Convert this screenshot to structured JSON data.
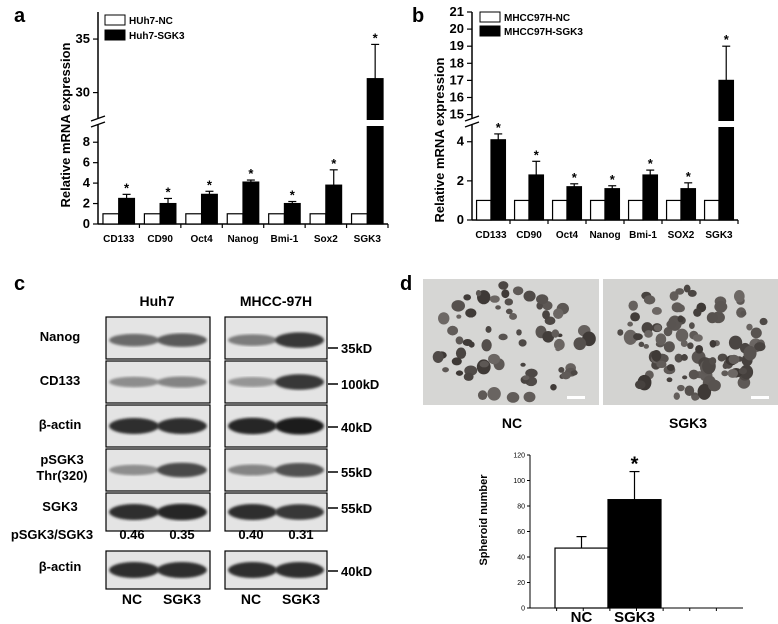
{
  "panels": {
    "a": "a",
    "b": "b",
    "c": "c",
    "d": "d"
  },
  "chart_data": [
    {
      "id": "a",
      "type": "bar",
      "ylabel": "Relative mRNA expression",
      "categories": [
        "CD133",
        "CD90",
        "Oct4",
        "Nanog",
        "Bmi-1",
        "Sox2",
        "SGK3"
      ],
      "series": [
        {
          "name": "HUh7-NC",
          "values": [
            1,
            1,
            1,
            1,
            1,
            1,
            1
          ],
          "color": "#ffffff"
        },
        {
          "name": "Huh7-SGK3",
          "values": [
            2.5,
            2.0,
            2.9,
            4.1,
            2.0,
            3.8,
            31.3
          ],
          "errors": [
            0.4,
            0.5,
            0.3,
            0.2,
            0.2,
            1.5,
            3.2
          ],
          "significant": [
            true,
            true,
            true,
            true,
            true,
            true,
            true
          ],
          "color": "#000000"
        }
      ],
      "y_ticks_lower": [
        "0",
        "2",
        "4",
        "6",
        "8"
      ],
      "y_ticks_upper": [
        "30",
        "35"
      ],
      "axis_break": true
    },
    {
      "id": "b",
      "type": "bar",
      "ylabel": "Relative mRNA expression",
      "categories": [
        "CD133",
        "CD90",
        "Oct4",
        "Nanog",
        "Bmi-1",
        "SOX2",
        "SGK3"
      ],
      "series": [
        {
          "name": "MHCC97H-NC",
          "values": [
            1,
            1,
            1,
            1,
            1,
            1,
            1
          ],
          "color": "#ffffff"
        },
        {
          "name": "MHCC97H-SGK3",
          "values": [
            4.1,
            2.3,
            1.7,
            1.6,
            2.3,
            1.6,
            17.0
          ],
          "errors": [
            0.3,
            0.7,
            0.15,
            0.15,
            0.25,
            0.3,
            2.0
          ],
          "significant": [
            true,
            true,
            true,
            true,
            true,
            true,
            true
          ],
          "color": "#000000"
        }
      ],
      "y_ticks_lower": [
        "0",
        "2",
        "4"
      ],
      "y_ticks_upper": [
        "15",
        "16",
        "17",
        "18",
        "19",
        "20",
        "21"
      ],
      "axis_break": true
    },
    {
      "id": "d",
      "type": "bar",
      "ylabel": "Spheroid number",
      "categories": [
        "NC",
        "SGK3"
      ],
      "values": [
        47,
        85
      ],
      "errors": [
        9,
        22
      ],
      "significant": [
        false,
        true
      ],
      "colors": [
        "#ffffff",
        "#000000"
      ],
      "ylim": [
        0,
        120
      ],
      "y_ticks": [
        "0",
        "20",
        "40",
        "60",
        "80",
        "100",
        "120"
      ]
    }
  ],
  "western": {
    "groups": [
      "Huh7",
      "MHCC-97H"
    ],
    "rows": [
      {
        "label": "Nanog",
        "size": "35kD"
      },
      {
        "label": "CD133",
        "size": "100kD"
      },
      {
        "label": "β-actin",
        "size": "40kD"
      },
      {
        "label": "pSGK3",
        "label2": "Thr(320)",
        "size": "55kD"
      },
      {
        "label": "SGK3",
        "size": "55kD"
      }
    ],
    "ratio_label": "pSGK3/SGK3",
    "ratios": [
      "0.46",
      "0.35",
      "0.40",
      "0.31"
    ],
    "bottom_row": {
      "label": "β-actin",
      "size": "40kD"
    },
    "lanes": [
      "NC",
      "SGK3",
      "NC",
      "SGK3"
    ]
  },
  "spheroid": {
    "image_labels": [
      "NC",
      "SGK3"
    ]
  },
  "significance_mark": "*"
}
